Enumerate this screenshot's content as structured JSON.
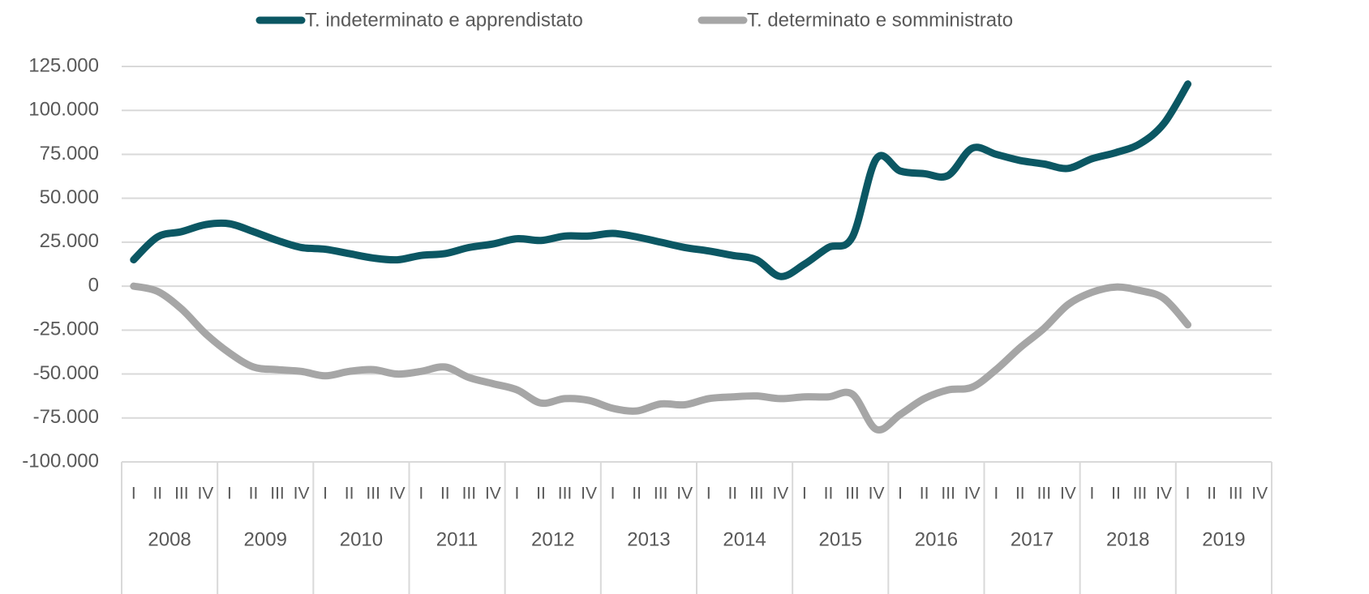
{
  "chart_data": {
    "type": "line",
    "categories": [
      "I",
      "II",
      "III",
      "IV",
      "I",
      "II",
      "III",
      "IV",
      "I",
      "II",
      "III",
      "IV",
      "I",
      "II",
      "III",
      "IV",
      "I",
      "II",
      "III",
      "IV",
      "I",
      "II",
      "III",
      "IV",
      "I",
      "II",
      "III",
      "IV",
      "I",
      "II",
      "III",
      "IV",
      "I",
      "II",
      "III",
      "IV",
      "I",
      "II",
      "III",
      "IV",
      "I",
      "II",
      "III",
      "IV",
      "I",
      "II",
      "III",
      "IV"
    ],
    "groups": [
      "2008",
      "2009",
      "2010",
      "2011",
      "2012",
      "2013",
      "2014",
      "2015",
      "2016",
      "2017",
      "2018",
      "2019"
    ],
    "series": [
      {
        "name": "T. indeterminato e apprendistato",
        "color": "#0b5763",
        "values": [
          15000,
          28000,
          31000,
          35000,
          35500,
          31000,
          26000,
          22000,
          21000,
          18500,
          16000,
          15000,
          17500,
          18500,
          22000,
          24000,
          27000,
          26000,
          28500,
          28500,
          30000,
          28000,
          25000,
          22000,
          20000,
          17500,
          15000,
          5500,
          12500,
          22000,
          28000,
          72500,
          65500,
          64000,
          63000,
          78500,
          75000,
          71500,
          69500,
          67000,
          72500,
          76000,
          81000,
          92500,
          115000,
          null,
          null,
          null
        ]
      },
      {
        "name": "T. determinato e somministrato",
        "color": "#a6a6a6",
        "values": [
          0,
          -3000,
          -13000,
          -27000,
          -38000,
          -46000,
          -47500,
          -48500,
          -51000,
          -48500,
          -47500,
          -50000,
          -48500,
          -46000,
          -52000,
          -55500,
          -59000,
          -66500,
          -64000,
          -65000,
          -69500,
          -71000,
          -67000,
          -67500,
          -64000,
          -63000,
          -62500,
          -64000,
          -63000,
          -63000,
          -61500,
          -81500,
          -73000,
          -64000,
          -59000,
          -57500,
          -47500,
          -35000,
          -24000,
          -10500,
          -3500,
          -500,
          -2500,
          -7000,
          -22000,
          null,
          null,
          null
        ]
      }
    ],
    "ylim": [
      -100000,
      125000
    ],
    "yticks": [
      {
        "value": -100000,
        "label": "-100.000"
      },
      {
        "value": -75000,
        "label": "-75.000"
      },
      {
        "value": -50000,
        "label": "-50.000"
      },
      {
        "value": -25000,
        "label": "-25.000"
      },
      0,
      {
        "value": 25000,
        "label": "25.000"
      },
      {
        "value": 50000,
        "label": "50.000"
      },
      {
        "value": 75000,
        "label": "75.000"
      },
      {
        "value": 100000,
        "label": "100.000"
      },
      {
        "value": 125000,
        "label": "125.000"
      }
    ],
    "grid": true,
    "legend": "top"
  }
}
